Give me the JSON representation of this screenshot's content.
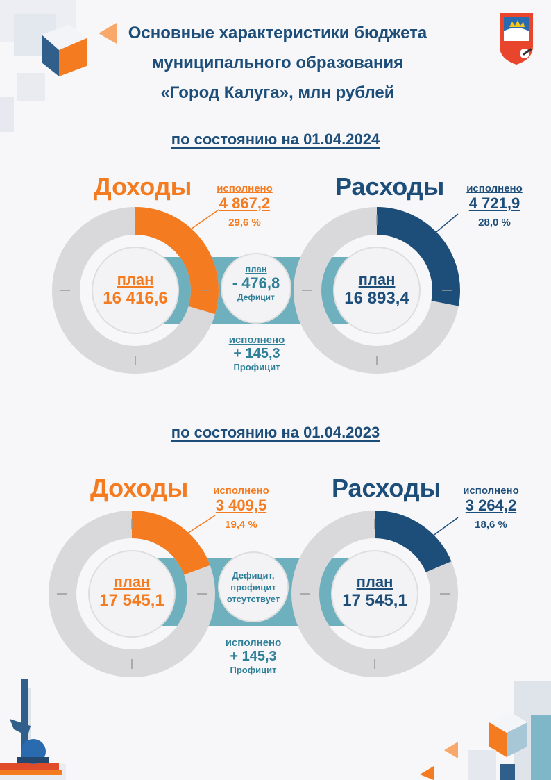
{
  "header": {
    "title_line1": "Основные характеристики бюджета",
    "title_line2": "муниципального образования",
    "title_line3": "«Город Калуга», млн рублей"
  },
  "colors": {
    "income": "#f47b20",
    "expense": "#1d4d79",
    "track": "#d9d9db",
    "band": "#6fb0be"
  },
  "section_2024": {
    "date_label": "по состоянию на 01.04.2024",
    "income": {
      "title": "Доходы",
      "executed_label": "исполнено",
      "executed_value": "4 867,2",
      "executed_percent": "29,6 %",
      "plan_label": "план",
      "plan_value": "16 416,6",
      "executed_fraction": 0.296
    },
    "expense": {
      "title": "Расходы",
      "executed_label": "исполнено",
      "executed_value": "4 721,9",
      "executed_percent": "28,0 %",
      "plan_label": "план",
      "plan_value": "16 893,4",
      "executed_fraction": 0.28
    },
    "balance_plan": {
      "label": "план",
      "value": "- 476,8",
      "type": "Дефицит"
    },
    "balance_executed": {
      "label": "исполнено",
      "value": "+ 145,3",
      "type": "Профицит"
    }
  },
  "section_2023": {
    "date_label": "по состоянию на 01.04.2023",
    "income": {
      "title": "Доходы",
      "executed_label": "исполнено",
      "executed_value": "3 409,5",
      "executed_percent": "19,4 %",
      "plan_label": "план",
      "plan_value": "17 545,1",
      "executed_fraction": 0.194
    },
    "expense": {
      "title": "Расходы",
      "executed_label": "исполнено",
      "executed_value": "3 264,2",
      "executed_percent": "18,6 %",
      "plan_label": "план",
      "plan_value": "17 545,1",
      "executed_fraction": 0.186
    },
    "balance_plan": {
      "line1": "Дефицит,",
      "line2": "профицит",
      "line3": "отсутствует"
    },
    "balance_executed": {
      "label": "исполнено",
      "value": "+ 145,3",
      "type": "Профицит"
    }
  }
}
